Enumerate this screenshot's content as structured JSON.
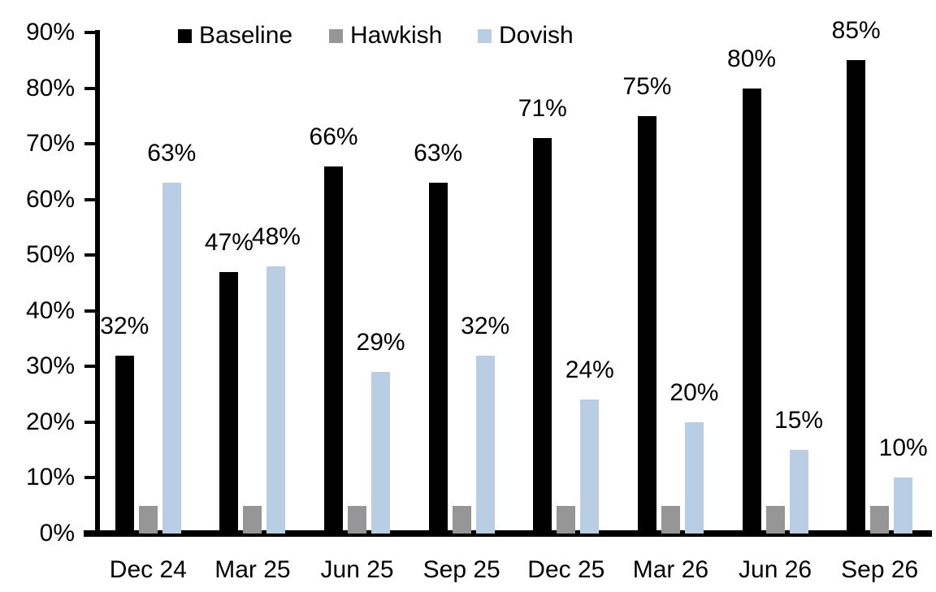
{
  "chart_data": {
    "type": "bar",
    "title": "",
    "xlabel": "",
    "ylabel": "",
    "categories": [
      "Dec 24",
      "Mar 25",
      "Jun 25",
      "Sep 25",
      "Dec 25",
      "Mar 26",
      "Jun 26",
      "Sep 26"
    ],
    "series": [
      {
        "name": "Baseline",
        "color": "#000000",
        "values": [
          32,
          47,
          66,
          63,
          71,
          75,
          80,
          85
        ],
        "value_labels": [
          "32%",
          "47%",
          "66%",
          "63%",
          "71%",
          "75%",
          "80%",
          "85%"
        ]
      },
      {
        "name": "Hawkish",
        "color": "#969696",
        "values": [
          5,
          5,
          5,
          5,
          5,
          5,
          5,
          5
        ],
        "value_labels": [
          "",
          "",
          "",
          "",
          "",
          "",
          "",
          ""
        ]
      },
      {
        "name": "Dovish",
        "color": "#B9CDE4",
        "values": [
          63,
          48,
          29,
          32,
          24,
          20,
          15,
          10
        ],
        "value_labels": [
          "63%",
          "48%",
          "29%",
          "32%",
          "24%",
          "20%",
          "15%",
          "10%"
        ]
      }
    ],
    "ylim": [
      0,
      90
    ],
    "yticks": {
      "values": [
        0,
        10,
        20,
        30,
        40,
        50,
        60,
        70,
        80,
        90
      ],
      "labels": [
        "0%",
        "10%",
        "20%",
        "30%",
        "40%",
        "50%",
        "60%",
        "70%",
        "80%",
        "90%"
      ]
    },
    "grid": false,
    "legend": {
      "position": "top",
      "items": [
        "Baseline",
        "Hawkish",
        "Dovish"
      ]
    }
  },
  "style": {
    "background": "#FFFFFF",
    "axis_color": "#000000",
    "text_color": "#000000"
  }
}
